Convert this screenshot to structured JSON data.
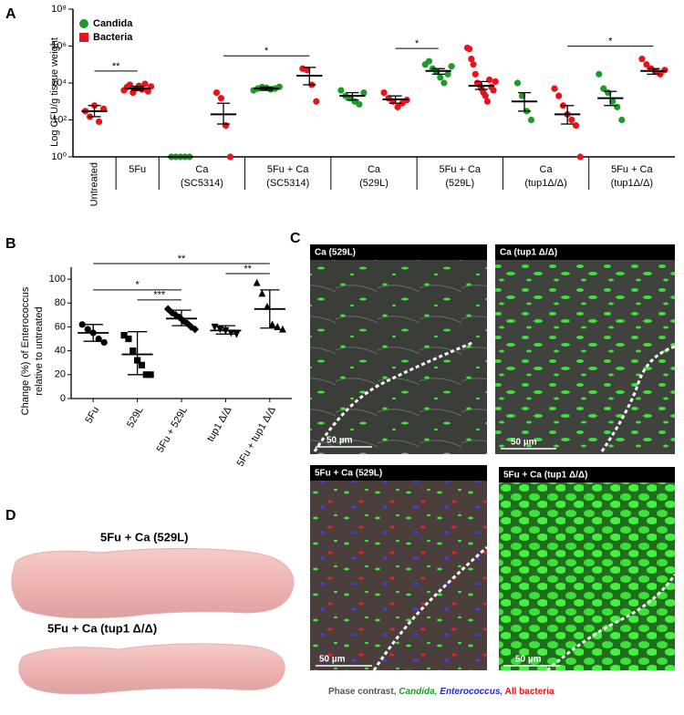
{
  "panel_labels": [
    "A",
    "B",
    "C",
    "D"
  ],
  "chart_data": [
    {
      "type": "scatter",
      "ylabel": "Log CFU/g tissue weight",
      "log_y": true,
      "ylim": [
        1,
        100000000
      ],
      "yticks": [
        {
          "value": 1,
          "label": "10⁰"
        },
        {
          "value": 100,
          "label": "10²"
        },
        {
          "value": 10000,
          "label": "10⁴"
        },
        {
          "value": 1000000,
          "label": "10⁶"
        },
        {
          "value": 100000000,
          "label": "10⁸"
        }
      ],
      "xlim": [
        -0.5,
        13.5
      ],
      "groups": [
        {
          "label": [
            "Untreated"
          ],
          "columns": [
            0,
            0
          ]
        },
        {
          "label": [
            "5Fu"
          ],
          "columns": [
            1,
            1
          ]
        },
        {
          "label": [
            "Ca",
            "(SC5314)"
          ],
          "columns": [
            2,
            3
          ]
        },
        {
          "label": [
            "5Fu + Ca",
            "(SC5314)"
          ],
          "columns": [
            4,
            5
          ]
        },
        {
          "label": [
            "Ca",
            "(529L)"
          ],
          "columns": [
            6,
            7
          ]
        },
        {
          "label": [
            "5Fu + Ca",
            "(529L)"
          ],
          "columns": [
            8,
            9
          ]
        },
        {
          "label": [
            "Ca",
            "(tup1Δ/Δ)"
          ],
          "columns": [
            10,
            11
          ]
        },
        {
          "label": [
            "5Fu + Ca",
            "(tup1Δ/Δ)"
          ],
          "columns": [
            12,
            13
          ]
        }
      ],
      "series": [
        {
          "name": "Candida",
          "color": "#1e9a2c",
          "marker": "circle",
          "x": [
            2,
            2,
            2,
            2,
            2,
            4,
            4,
            4,
            4,
            4,
            4,
            4,
            6,
            6,
            6,
            6,
            6,
            6,
            8,
            8,
            8,
            8,
            8,
            8,
            8,
            8,
            10,
            10,
            10,
            10,
            12,
            12,
            12,
            12,
            12,
            12
          ],
          "values": [
            1,
            1,
            1,
            1,
            1,
            4000,
            5000,
            6000,
            5500,
            4500,
            5000,
            6200,
            4000,
            2000,
            1500,
            1000,
            700,
            3000,
            100000,
            150000,
            60000,
            40000,
            20000,
            10000,
            30000,
            80000,
            10000,
            2000,
            300,
            100,
            30000,
            5000,
            3000,
            1000,
            500,
            100
          ]
        },
        {
          "name": "Bacteria",
          "color": "#e8141b",
          "marker": "square",
          "x": [
            0,
            0,
            0,
            0,
            0,
            1,
            1,
            1,
            1,
            1,
            1,
            1,
            1,
            1,
            1,
            3,
            3,
            3,
            3,
            5,
            5,
            5,
            5,
            7,
            7,
            7,
            7,
            7,
            7,
            9,
            9,
            9,
            9,
            9,
            9,
            9,
            9,
            9,
            9,
            9,
            9,
            9,
            9,
            9,
            11,
            11,
            11,
            11,
            11,
            11,
            11,
            13,
            13,
            13,
            13,
            13,
            13
          ],
          "values": [
            300,
            150,
            600,
            80,
            400,
            4000,
            6000,
            8000,
            3000,
            5000,
            7000,
            4500,
            9000,
            3500,
            6500,
            3000,
            1500,
            50,
            1,
            60000,
            50000,
            8000,
            1000,
            3000,
            1500,
            1000,
            500,
            800,
            1200,
            800000,
            700000,
            200000,
            100000,
            30000,
            10000,
            8000,
            5000,
            3000,
            2000,
            1000,
            15000,
            6000,
            4000,
            12000,
            5000,
            2000,
            600,
            200,
            100,
            50,
            1,
            200000,
            100000,
            60000,
            40000,
            30000,
            50000
          ]
        }
      ],
      "summary": {
        "color": "#000000",
        "x": [
          0,
          1,
          2,
          3,
          4,
          5,
          6,
          7,
          8,
          9,
          10,
          11,
          12,
          13
        ],
        "mean": [
          300,
          5000,
          1,
          200,
          5000,
          25000,
          2000,
          1300,
          45000,
          7000,
          1000,
          200,
          1500,
          45000
        ],
        "low": [
          150,
          4000,
          1,
          60,
          4000,
          8000,
          1200,
          800,
          30000,
          4500,
          300,
          60,
          600,
          30000
        ],
        "high": [
          600,
          6500,
          1,
          800,
          6000,
          70000,
          3000,
          2000,
          60000,
          12000,
          3000,
          600,
          3500,
          60000
        ]
      },
      "significance": [
        {
          "label": "**",
          "from": 0,
          "to": 1
        },
        {
          "label": "*",
          "from": 3,
          "to": 5
        },
        {
          "label": "*",
          "from": 7,
          "to": 8
        },
        {
          "label": "*",
          "from": 11,
          "to": 13
        }
      ]
    },
    {
      "type": "dotplot",
      "ylabel": [
        "Change (%) of Enterococcus",
        "relative to untreated"
      ],
      "categories": [
        "5Fu",
        "529L",
        "5Fu + 529L",
        "tup1 Δ/Δ",
        "5Fu + tup1 Δ/Δ"
      ],
      "markers": [
        "circle",
        "square",
        "diamond",
        "triangle-down",
        "triangle-up"
      ],
      "color": "#000000",
      "ylim": [
        0,
        110
      ],
      "yticks": [
        0,
        20,
        40,
        60,
        80,
        100
      ],
      "values": [
        [
          62,
          58,
          55,
          50,
          47
        ],
        [
          53,
          50,
          40,
          32,
          28,
          20,
          20
        ],
        [
          75,
          72,
          70,
          68,
          65,
          63,
          60,
          58
        ],
        [
          60,
          58,
          57,
          55,
          54
        ],
        [
          97,
          88,
          77,
          62,
          60,
          58
        ]
      ],
      "mean": [
        55,
        37,
        67,
        57,
        75
      ],
      "low": [
        48,
        20,
        61,
        54,
        59
      ],
      "high": [
        62,
        56,
        74,
        61,
        91
      ],
      "significance": [
        {
          "label": "***",
          "from": 1,
          "to": 2
        },
        {
          "label": "**",
          "from": 3,
          "to": 4
        },
        {
          "label": "*",
          "from": 0,
          "to": 2
        },
        {
          "label": "**",
          "from": 0,
          "to": 4
        }
      ]
    }
  ],
  "panel_c": {
    "images": [
      {
        "title": "Ca (529L)",
        "scale": "50 µm"
      },
      {
        "title": "Ca (tup1 Δ/Δ)",
        "scale": "50 µm"
      },
      {
        "title": "5Fu + Ca (529L)",
        "scale": "50 µm"
      },
      {
        "title": "5Fu + Ca (tup1 Δ/Δ)",
        "scale": "50 µm"
      }
    ],
    "caption": [
      "Phase contrast,",
      "Candida,",
      "Enterococcus,",
      "All bacteria"
    ]
  },
  "panel_d": {
    "labels": [
      "5Fu + Ca (529L)",
      "5Fu + Ca (tup1 Δ/Δ)"
    ]
  }
}
